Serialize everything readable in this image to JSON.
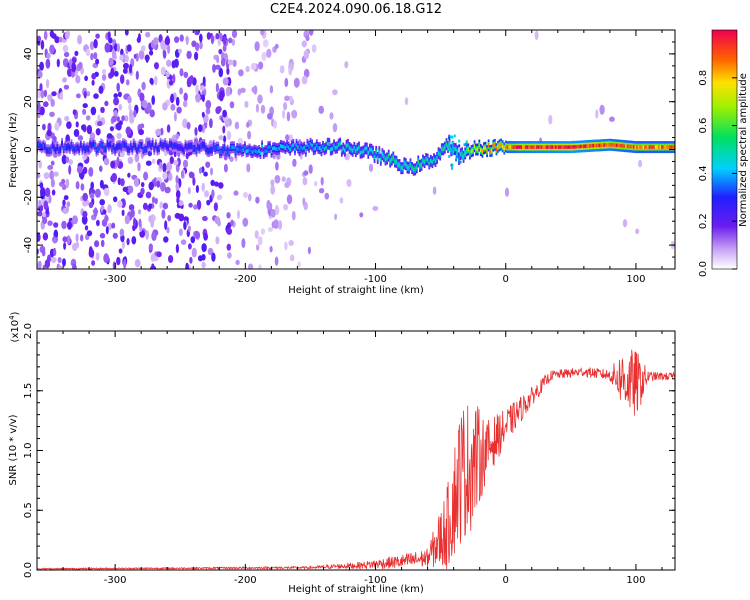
{
  "title": "C2E4.2024.090.06.18.G12",
  "chart_data": [
    {
      "type": "heatmap",
      "xlabel": "Height of straight line (km)",
      "ylabel": "Frequency (Hz)",
      "xlim": [
        -360,
        130
      ],
      "ylim": [
        -50,
        50
      ],
      "xticks": [
        -300,
        -200,
        -100,
        0,
        100
      ],
      "xtick_labels": [
        "-300",
        "-200",
        "-100",
        "0",
        "100"
      ],
      "yticks": [
        -40,
        -20,
        0,
        20,
        40
      ],
      "ytick_labels": [
        "-40",
        "-20",
        "0",
        "20",
        "40"
      ],
      "colorbar": {
        "label": "Normalized spectral amplitude",
        "range": [
          0,
          1
        ],
        "ticks": [
          0.0,
          0.2,
          0.4,
          0.6,
          0.8
        ],
        "tick_labels": [
          "0.0",
          "0.2",
          "0.4",
          "0.6",
          "0.8"
        ],
        "colormap": "rainbow"
      },
      "ridge": [
        {
          "x": -340,
          "f": 1,
          "amp": 0.3
        },
        {
          "x": -300,
          "f": 1,
          "amp": 0.3
        },
        {
          "x": -250,
          "f": 1,
          "amp": 0.28
        },
        {
          "x": -210,
          "f": 0,
          "amp": 0.35
        },
        {
          "x": -180,
          "f": 0,
          "amp": 0.4
        },
        {
          "x": -150,
          "f": 1,
          "amp": 0.4
        },
        {
          "x": -120,
          "f": 1,
          "amp": 0.45
        },
        {
          "x": -100,
          "f": -2,
          "amp": 0.45
        },
        {
          "x": -85,
          "f": -5,
          "amp": 0.5
        },
        {
          "x": -75,
          "f": -8,
          "amp": 0.5
        },
        {
          "x": -65,
          "f": -6,
          "amp": 0.5
        },
        {
          "x": -55,
          "f": -4,
          "amp": 0.45
        },
        {
          "x": -45,
          "f": 2,
          "amp": 0.5
        },
        {
          "x": -35,
          "f": -3,
          "amp": 0.45
        },
        {
          "x": -25,
          "f": 0,
          "amp": 0.7
        },
        {
          "x": -10,
          "f": 1,
          "amp": 0.8
        },
        {
          "x": 10,
          "f": 1,
          "amp": 0.9
        },
        {
          "x": 50,
          "f": 1,
          "amp": 0.95
        },
        {
          "x": 80,
          "f": 2,
          "amp": 0.9
        },
        {
          "x": 100,
          "f": 1,
          "amp": 0.85
        },
        {
          "x": 130,
          "f": 1,
          "amp": 0.85
        }
      ]
    },
    {
      "type": "line",
      "xlabel": "Height of straight line (km)",
      "ylabel": "SNR (10 * v/v)",
      "scale_label": "(x10",
      "scale_exp": "4",
      "scale_close": ")",
      "xlim": [
        -360,
        130
      ],
      "ylim": [
        0,
        2.0
      ],
      "xticks": [
        -300,
        -200,
        -100,
        0,
        100
      ],
      "xtick_labels": [
        "-300",
        "-200",
        "-100",
        "0",
        "100"
      ],
      "yticks": [
        0,
        0.5,
        1.0,
        1.5,
        2.0
      ],
      "ytick_labels": [
        "0.0",
        "0.5",
        "1.0",
        "1.5",
        "2.0"
      ],
      "series": [
        {
          "color": "#e83030",
          "envelope": [
            {
              "x": -360,
              "mean": 0.01,
              "noise": 0.005
            },
            {
              "x": -250,
              "mean": 0.015,
              "noise": 0.006
            },
            {
              "x": -150,
              "mean": 0.02,
              "noise": 0.01
            },
            {
              "x": -110,
              "mean": 0.04,
              "noise": 0.03
            },
            {
              "x": -80,
              "mean": 0.07,
              "noise": 0.06
            },
            {
              "x": -60,
              "mean": 0.1,
              "noise": 0.08
            },
            {
              "x": -45,
              "mean": 0.35,
              "noise": 0.35
            },
            {
              "x": -35,
              "mean": 0.8,
              "noise": 0.6
            },
            {
              "x": -25,
              "mean": 0.9,
              "noise": 0.55
            },
            {
              "x": -15,
              "mean": 1.0,
              "noise": 0.25
            },
            {
              "x": 0,
              "mean": 1.2,
              "noise": 0.15
            },
            {
              "x": 20,
              "mean": 1.45,
              "noise": 0.08
            },
            {
              "x": 35,
              "mean": 1.63,
              "noise": 0.04
            },
            {
              "x": 60,
              "mean": 1.66,
              "noise": 0.04
            },
            {
              "x": 80,
              "mean": 1.63,
              "noise": 0.05
            },
            {
              "x": 90,
              "mean": 1.6,
              "noise": 0.25
            },
            {
              "x": 100,
              "mean": 1.55,
              "noise": 0.3
            },
            {
              "x": 110,
              "mean": 1.62,
              "noise": 0.04
            },
            {
              "x": 130,
              "mean": 1.62,
              "noise": 0.03
            }
          ]
        }
      ]
    }
  ]
}
